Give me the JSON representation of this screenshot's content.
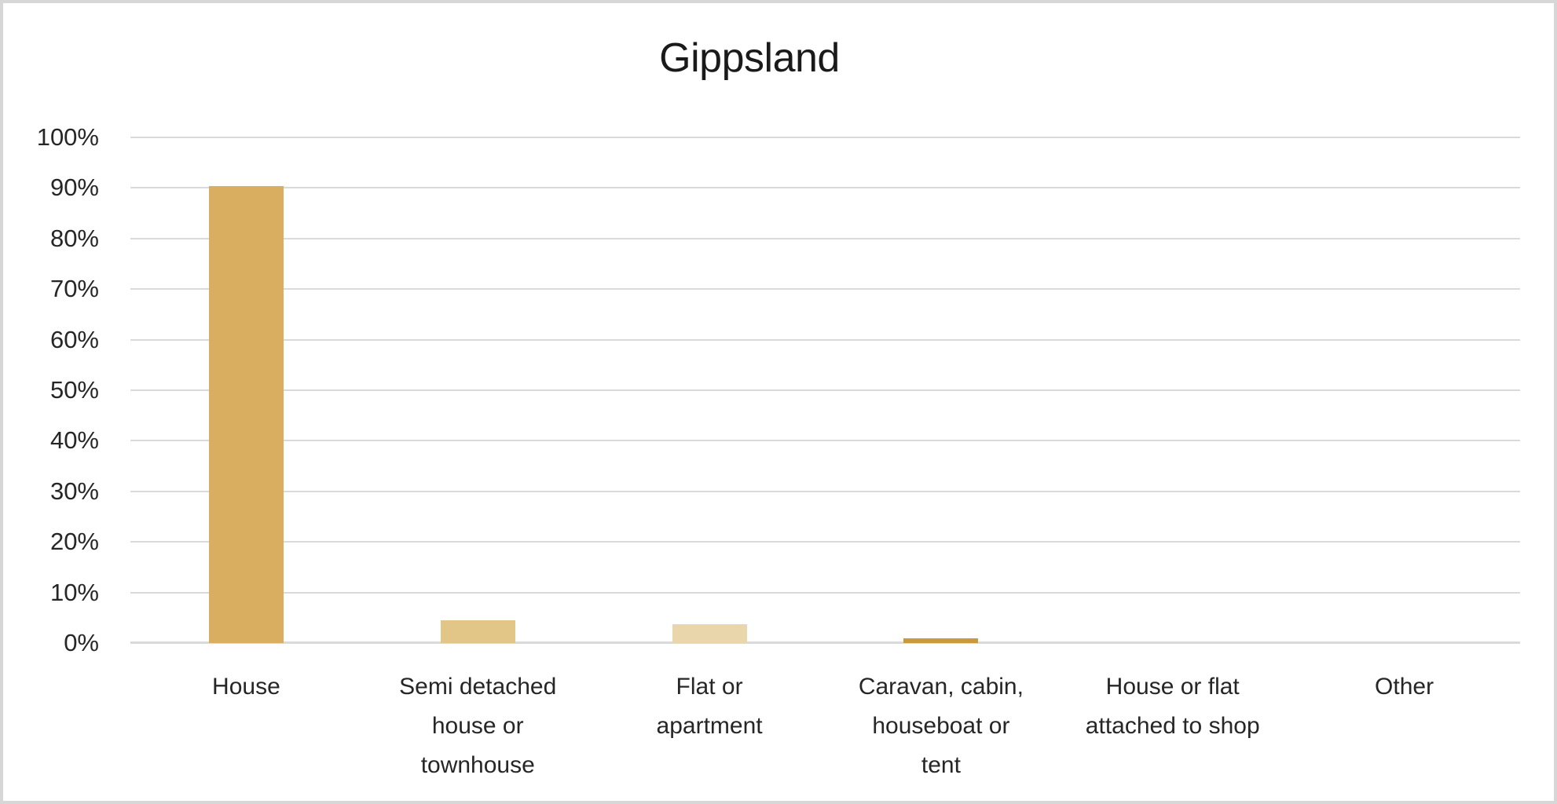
{
  "page": {
    "background": "#FFFFFF",
    "frame_border_color": "#D7D7D7"
  },
  "chart_data": {
    "type": "bar",
    "title": "Gippsland",
    "title_color": "#1A1A1A",
    "text_color": "#262626",
    "categories": [
      "House",
      "Semi detached house or townhouse",
      "Flat or apartment",
      "Caravan, cabin, houseboat or tent",
      "House or flat attached to shop",
      "Other"
    ],
    "category_lines": [
      [
        "House"
      ],
      [
        "Semi detached",
        "house or",
        "townhouse"
      ],
      [
        "Flat or",
        "apartment"
      ],
      [
        "Caravan, cabin,",
        "houseboat or",
        "tent"
      ],
      [
        "House or flat",
        "attached to shop"
      ],
      [
        "Other"
      ]
    ],
    "values": [
      90.4,
      4.5,
      3.8,
      0.9,
      0,
      0
    ],
    "value_format": "percent",
    "bar_colors": [
      "#D9AE60",
      "#E2C687",
      "#EAD6AB",
      "#C89A3C",
      "#D9AE60",
      "#D9AE60"
    ],
    "ylim": [
      0,
      100
    ],
    "yticks": [
      {
        "value": 0,
        "label": "0%"
      },
      {
        "value": 10,
        "label": "10%"
      },
      {
        "value": 20,
        "label": "20%"
      },
      {
        "value": 30,
        "label": "30%"
      },
      {
        "value": 40,
        "label": "40%"
      },
      {
        "value": 50,
        "label": "50%"
      },
      {
        "value": 60,
        "label": "60%"
      },
      {
        "value": 70,
        "label": "70%"
      },
      {
        "value": 80,
        "label": "80%"
      },
      {
        "value": 90,
        "label": "90%"
      },
      {
        "value": 100,
        "label": "100%"
      }
    ],
    "grid": true,
    "gridline_color": "#DADADA",
    "legend_position": "none"
  }
}
